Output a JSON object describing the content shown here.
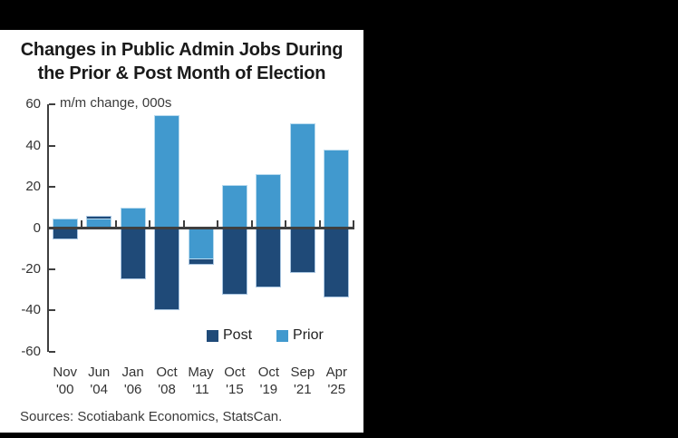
{
  "window": {
    "background_color": "#000000",
    "panel_background_color": "#ffffff"
  },
  "chart": {
    "title_line1": "Changes in Public Admin Jobs During",
    "title_line2": "the Prior & Post Month of Election",
    "ylabel": "m/m change, 000s",
    "sources": "Sources: Scotiabank Economics, StatsCan.",
    "legend": {
      "post": "Post",
      "prior": "Prior"
    }
  },
  "chart_data": {
    "type": "bar",
    "title": "Changes in Public Admin Jobs During the Prior & Post Month of Election",
    "ylabel": "m/m change, 000s",
    "categories": [
      {
        "month": "Nov",
        "year": "'00"
      },
      {
        "month": "Jun",
        "year": "'04"
      },
      {
        "month": "Jan",
        "year": "'06"
      },
      {
        "month": "Oct",
        "year": "'08"
      },
      {
        "month": "May",
        "year": "'11"
      },
      {
        "month": "Oct",
        "year": "'15"
      },
      {
        "month": "Oct",
        "year": "'19"
      },
      {
        "month": "Sep",
        "year": "'21"
      },
      {
        "month": "Apr",
        "year": "'25"
      }
    ],
    "series": [
      {
        "name": "Post",
        "color": "#1f4a78",
        "values": [
          -5.5,
          6,
          -25,
          -40,
          -18,
          -32.5,
          -29,
          -22,
          -33.5
        ]
      },
      {
        "name": "Prior",
        "color": "#4199ce",
        "values": [
          4.5,
          4.5,
          10,
          55,
          -15,
          21,
          26,
          51,
          38
        ]
      }
    ],
    "ylim": [
      -60,
      60
    ],
    "y_ticks": [
      60,
      40,
      20,
      0,
      -20,
      -40,
      -60
    ],
    "grid": false,
    "bar_mode": "overlapped-same-x",
    "legend_position": "inside-bottom-right",
    "axis_color": "#3f3f3f",
    "text_color": "#333333"
  }
}
